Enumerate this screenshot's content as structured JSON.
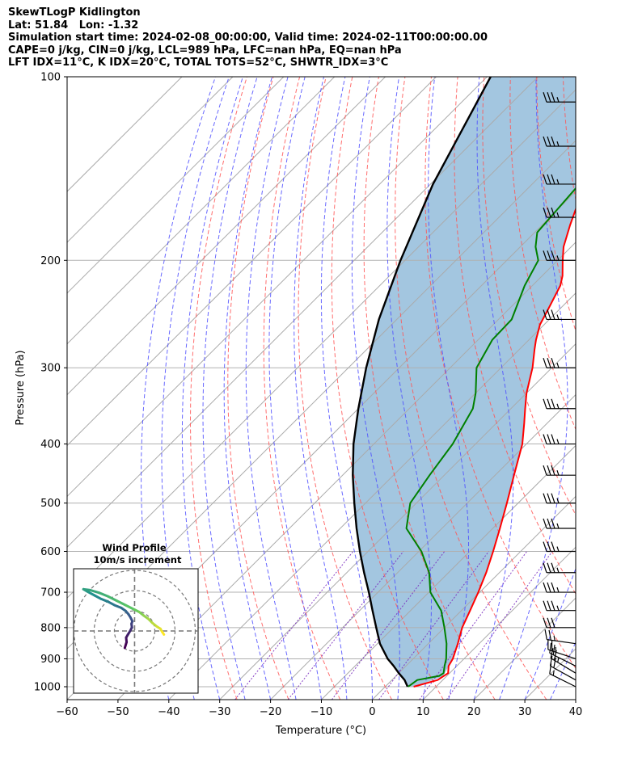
{
  "header": {
    "line1": "SkewTLogP Kidlington",
    "line2": "Lat: 51.84   Lon: -1.32",
    "line3": "Simulation start time: 2024-02-08_00:00:00, Valid time: 2024-02-11T00:00:00.00",
    "line4": "CAPE=0 j/kg, CIN=0 j/kg, LCL=989 hPa, LFC=nan hPa, EQ=nan hPa",
    "line5": "LFT IDX=11°C, K IDX=20°C, TOTAL TOTS=52°C, SHWTR_IDX=3°C"
  },
  "colors": {
    "temperature": "#ff0000",
    "dewpoint": "#008000",
    "parcel": "#000000",
    "cape_fill": "#a3c6e0",
    "dry_adiabat": "#ff5555",
    "moist_adiabat": "#4d4dff",
    "mixing_ratio": "#7a2dbf",
    "isotherm": "#aaaaaa"
  },
  "chart_data": {
    "type": "skew-t log-p",
    "xlabel": "Temperature (°C)",
    "ylabel": "Pressure (hPa)",
    "xlim": [
      -60,
      40
    ],
    "ylim": [
      1050,
      100
    ],
    "y_scale": "log",
    "x_ticks": [
      -60,
      -50,
      -40,
      -30,
      -20,
      -10,
      0,
      10,
      20,
      30,
      40
    ],
    "y_ticks": [
      100,
      200,
      300,
      400,
      500,
      600,
      700,
      800,
      900,
      1000
    ],
    "grid": true,
    "series": [
      {
        "key": "temperature",
        "points": [
          [
            1000,
            5.6
          ],
          [
            975,
            9
          ],
          [
            950,
            9.7
          ],
          [
            925,
            8.4
          ],
          [
            900,
            7.8
          ],
          [
            850,
            5.8
          ],
          [
            800,
            3.5
          ],
          [
            750,
            1.7
          ],
          [
            700,
            -0.3
          ],
          [
            650,
            -2.6
          ],
          [
            600,
            -5.4
          ],
          [
            550,
            -8.6
          ],
          [
            500,
            -12.2
          ],
          [
            450,
            -16.3
          ],
          [
            400,
            -20.8
          ],
          [
            370,
            -24.5
          ],
          [
            350,
            -27.2
          ],
          [
            330,
            -30
          ],
          [
            300,
            -33.8
          ],
          [
            280,
            -37
          ],
          [
            270,
            -38.6
          ],
          [
            255,
            -40.8
          ],
          [
            240,
            -42.3
          ],
          [
            220,
            -44.5
          ],
          [
            212,
            -46
          ],
          [
            200,
            -49
          ],
          [
            190,
            -51.5
          ],
          [
            175,
            -54.5
          ],
          [
            160,
            -57.5
          ],
          [
            140,
            -61
          ],
          [
            120,
            -63.5
          ],
          [
            110,
            -65
          ],
          [
            100,
            -66.5
          ]
        ]
      },
      {
        "key": "dewpoint",
        "points": [
          [
            1000,
            4.5
          ],
          [
            975,
            5
          ],
          [
            960,
            8.5
          ],
          [
            950,
            8.8
          ],
          [
            925,
            7.6
          ],
          [
            900,
            6.5
          ],
          [
            850,
            3.6
          ],
          [
            800,
            0
          ],
          [
            750,
            -4
          ],
          [
            700,
            -9.7
          ],
          [
            650,
            -13.8
          ],
          [
            600,
            -19.5
          ],
          [
            550,
            -27
          ],
          [
            500,
            -31.2
          ],
          [
            450,
            -32.9
          ],
          [
            400,
            -34.5
          ],
          [
            350,
            -37.5
          ],
          [
            330,
            -40
          ],
          [
            300,
            -44.8
          ],
          [
            270,
            -47.2
          ],
          [
            250,
            -47.4
          ],
          [
            220,
            -51.5
          ],
          [
            200,
            -53.8
          ],
          [
            190,
            -57
          ],
          [
            180,
            -59.5
          ],
          [
            150,
            -60.7
          ],
          [
            130,
            -59.5
          ],
          [
            100,
            -51.5
          ]
        ]
      },
      {
        "key": "parcel",
        "points": [
          [
            1000,
            4.4
          ],
          [
            975,
            2.5
          ],
          [
            950,
            0
          ],
          [
            925,
            -2.4
          ],
          [
            900,
            -5
          ],
          [
            850,
            -9.5
          ],
          [
            800,
            -13.4
          ],
          [
            750,
            -17.5
          ],
          [
            700,
            -21.8
          ],
          [
            650,
            -26.6
          ],
          [
            600,
            -31.6
          ],
          [
            550,
            -36.8
          ],
          [
            500,
            -42.2
          ],
          [
            450,
            -48
          ],
          [
            400,
            -54
          ],
          [
            350,
            -60
          ],
          [
            300,
            -66.5
          ],
          [
            250,
            -73.5
          ],
          [
            200,
            -80.9
          ],
          [
            150,
            -89.5
          ],
          [
            100,
            -99.3
          ]
        ]
      }
    ],
    "wind_barbs": [
      {
        "p": 1000,
        "u": 8.0,
        "v": -4.0
      },
      {
        "p": 975,
        "u": 9.0,
        "v": -5.0
      },
      {
        "p": 950,
        "u": 10.0,
        "v": -6.0
      },
      {
        "p": 925,
        "u": 10.0,
        "v": -5.0
      },
      {
        "p": 900,
        "u": 12.0,
        "v": -4.0
      },
      {
        "p": 850,
        "u": 14.0,
        "v": -2.0
      },
      {
        "p": 800,
        "u": 16.0,
        "v": 0.0
      },
      {
        "p": 750,
        "u": 18.0,
        "v": 0.0
      },
      {
        "p": 700,
        "u": 18.0,
        "v": 0.0
      },
      {
        "p": 650,
        "u": 18.0,
        "v": 0.0
      },
      {
        "p": 600,
        "u": 18.0,
        "v": 0.0
      },
      {
        "p": 550,
        "u": 18.0,
        "v": 0.0
      },
      {
        "p": 500,
        "u": 18.0,
        "v": 0.0
      },
      {
        "p": 450,
        "u": 18.0,
        "v": 0.0
      },
      {
        "p": 400,
        "u": 18.0,
        "v": 0.0
      },
      {
        "p": 350,
        "u": 18.0,
        "v": 0.0
      },
      {
        "p": 300,
        "u": 18.0,
        "v": 0.0
      },
      {
        "p": 250,
        "u": 18.0,
        "v": 0.0
      },
      {
        "p": 200,
        "u": 18.0,
        "v": 0.0
      },
      {
        "p": 170,
        "u": 18.0,
        "v": 0.0
      },
      {
        "p": 150,
        "u": 18.0,
        "v": 0.0
      },
      {
        "p": 130,
        "u": 18.0,
        "v": 0.0
      },
      {
        "p": 110,
        "u": 18.0,
        "v": 0.0
      }
    ],
    "hodograph": {
      "title": "Wind Profile",
      "subtitle": "10m/s increment",
      "points": [
        [
          -2.2,
          -3.8
        ],
        [
          -1.8,
          -2.5
        ],
        [
          -1.9,
          -1.5
        ],
        [
          -1.5,
          -0.8
        ],
        [
          -1.0,
          0.0
        ],
        [
          -0.6,
          0.8
        ],
        [
          -0.7,
          1.6
        ],
        [
          -0.5,
          2.2
        ],
        [
          -0.9,
          3.0
        ],
        [
          -1.4,
          3.8
        ],
        [
          -2.0,
          4.5
        ],
        [
          -3.0,
          5.2
        ],
        [
          -4.5,
          5.8
        ],
        [
          -6.0,
          6.6
        ],
        [
          -7.5,
          7.2
        ],
        [
          -9.0,
          8.0
        ],
        [
          -10.5,
          8.8
        ],
        [
          -11.5,
          9.4
        ],
        [
          -10.0,
          9.2
        ],
        [
          -8.0,
          8.6
        ],
        [
          -6.0,
          7.8
        ],
        [
          -4.0,
          6.8
        ],
        [
          -2.0,
          5.8
        ],
        [
          0.0,
          4.8
        ],
        [
          1.0,
          4.3
        ],
        [
          2.0,
          3.5
        ],
        [
          3.0,
          2.8
        ],
        [
          4.0,
          1.8
        ],
        [
          5.0,
          1.0
        ],
        [
          5.8,
          0.5
        ],
        [
          6.2,
          -0.2
        ],
        [
          6.6,
          -0.8
        ]
      ]
    }
  }
}
